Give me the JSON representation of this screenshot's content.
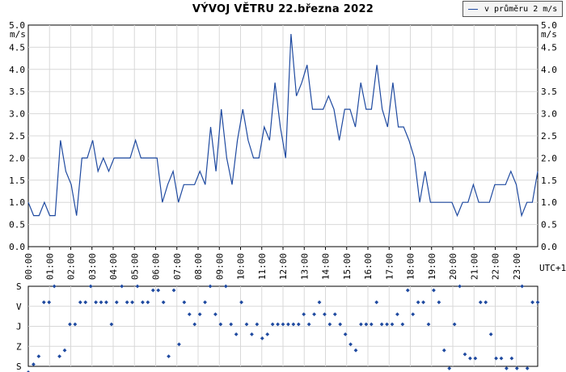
{
  "title": "VÝVOJ VĚTRU  22.března 2022",
  "legend": {
    "label": "v průměru 2 m/s",
    "color": "#1f4aa0"
  },
  "chart_data": [
    {
      "type": "line",
      "unit_label": "m/s",
      "ylim": [
        0,
        5
      ],
      "yticks": [
        "0.0",
        "0.5",
        "1.0",
        "1.5",
        "2.0",
        "2.5",
        "3.0",
        "3.5",
        "4.0",
        "4.5",
        "5.0"
      ],
      "xticks": [
        "00:00",
        "01:00",
        "02:00",
        "03:00",
        "04:00",
        "05:00",
        "06:00",
        "07:00",
        "08:00",
        "09:00",
        "10:00",
        "11:00",
        "12:00",
        "13:00",
        "14:00",
        "15:00",
        "16:00",
        "17:00",
        "18:00",
        "19:00",
        "20:00",
        "21:00",
        "22:00",
        "23:00"
      ],
      "timezone_label": "UTC+1",
      "grid": true,
      "series": [
        {
          "name": "v průměru 2 m/s",
          "color": "#1f4aa0",
          "values": [
            1.0,
            0.7,
            0.7,
            1.0,
            0.7,
            0.7,
            2.4,
            1.7,
            1.4,
            0.7,
            2.0,
            2.0,
            2.4,
            1.7,
            2.0,
            1.7,
            2.0,
            2.0,
            2.0,
            2.0,
            2.4,
            2.0,
            2.0,
            2.0,
            2.0,
            1.0,
            1.4,
            1.7,
            1.0,
            1.4,
            1.4,
            1.4,
            1.7,
            1.4,
            2.7,
            1.7,
            3.1,
            2.0,
            1.4,
            2.4,
            3.1,
            2.4,
            2.0,
            2.0,
            2.7,
            2.4,
            3.7,
            2.7,
            2.0,
            4.8,
            3.4,
            3.7,
            4.1,
            3.1,
            3.1,
            3.1,
            3.4,
            3.1,
            2.4,
            3.1,
            3.1,
            2.7,
            3.7,
            3.1,
            3.1,
            4.1,
            3.1,
            2.7,
            3.7,
            2.7,
            2.7,
            2.4,
            2.0,
            1.0,
            1.7,
            1.0,
            1.0,
            1.0,
            1.0,
            1.0,
            0.7,
            1.0,
            1.0,
            1.4,
            1.0,
            1.0,
            1.0,
            1.4,
            1.4,
            1.4,
            1.7,
            1.4,
            0.7,
            1.0,
            1.0,
            1.7
          ]
        }
      ]
    },
    {
      "type": "scatter",
      "y_categories": [
        "S",
        "V",
        "J",
        "Z",
        "S"
      ],
      "color": "#1f4aa0",
      "direction_series": [
        4.3,
        3.9,
        3.5,
        0.8,
        0.8,
        0,
        3.5,
        3.2,
        1.9,
        1.9,
        0.8,
        0.8,
        0,
        0.8,
        0.8,
        0.8,
        1.9,
        0.8,
        0,
        0.8,
        0.8,
        0,
        0.8,
        0.8,
        0.2,
        0.2,
        0.8,
        3.5,
        0.2,
        2.9,
        0.8,
        1.4,
        1.9,
        1.4,
        0.8,
        0,
        1.4,
        1.9,
        0,
        1.9,
        2.4,
        0.8,
        1.9,
        2.4,
        1.9,
        2.6,
        2.4,
        1.9,
        1.9,
        1.9,
        1.9,
        1.9,
        1.9,
        1.4,
        1.9,
        1.4,
        0.8,
        1.4,
        1.9,
        1.4,
        1.9,
        2.4,
        2.9,
        3.2,
        1.9,
        1.9,
        1.9,
        0.8,
        1.9,
        1.9,
        1.9,
        1.4,
        1.9,
        0.2,
        1.4,
        0.8,
        0.8,
        1.9,
        0.2,
        0.8,
        3.2,
        4.1,
        1.9,
        0,
        3.4,
        3.6,
        3.6,
        0.8,
        0.8,
        2.4,
        3.6,
        3.6,
        4.1,
        3.6,
        4.1,
        0,
        4.1,
        0.8,
        0.8
      ]
    }
  ]
}
